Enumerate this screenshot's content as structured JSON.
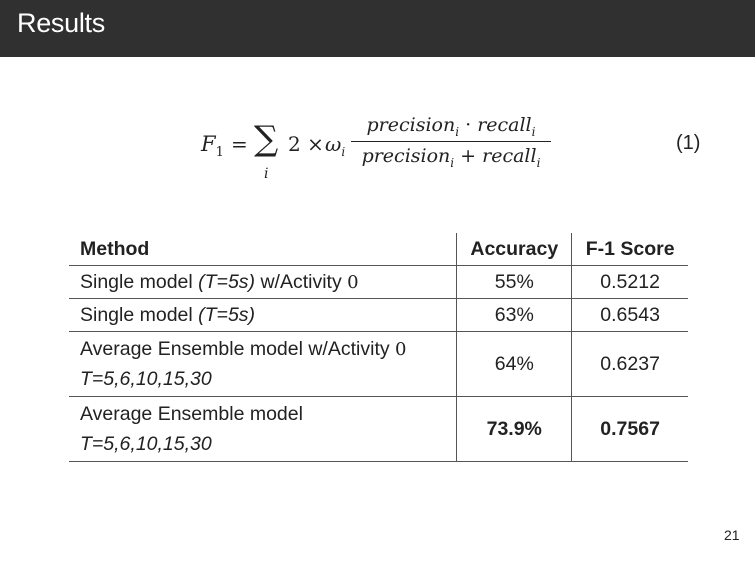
{
  "slide": {
    "title": "Results",
    "page_number": "21"
  },
  "equation": {
    "lhs": "F",
    "lhs_sub": "1",
    "equals": "=",
    "sum_symbol": "∑",
    "sum_index": "i",
    "factor": "2 ×",
    "weight": "ω",
    "weight_sub": "i",
    "numerator_a": "precision",
    "numerator_a_sub": "i",
    "numerator_op": " · ",
    "numerator_b": "recall",
    "numerator_b_sub": "i",
    "denominator_a": "precision",
    "denominator_a_sub": "i",
    "denominator_op": " + ",
    "denominator_b": "recall",
    "denominator_b_sub": "i",
    "number": "(1)"
  },
  "table": {
    "headers": {
      "method": "Method",
      "accuracy": "Accuracy",
      "f1": "F-1 Score"
    },
    "rows": [
      {
        "method_a": "Single model ",
        "method_it": "(T=5s)",
        "method_b": " w/Activity ",
        "math": "0",
        "accuracy": "55%",
        "f1": "0.5212"
      },
      {
        "method_a": "Single model ",
        "method_it": "(T=5s)",
        "accuracy": "63%",
        "f1": "0.6543"
      },
      {
        "method_a": "Average Ensemble model w/Activity ",
        "math": "0",
        "line2": "T=5,6,10,15,30",
        "accuracy": "64%",
        "f1": "0.6237"
      },
      {
        "method_a": "Average Ensemble model",
        "line2": "T=5,6,10,15,30",
        "accuracy": "73.9%",
        "f1": "0.7567"
      }
    ]
  }
}
